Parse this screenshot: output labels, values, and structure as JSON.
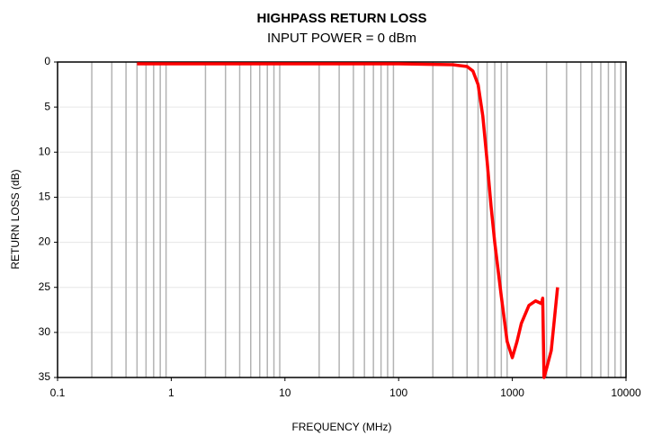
{
  "chart_data": {
    "type": "line",
    "title": "HIGHPASS RETURN LOSS",
    "subtitle": "INPUT POWER = 0 dBm",
    "x_label": "FREQUENCY (MHz)",
    "y_label": "RETURN LOSS (dB)",
    "x_log": true,
    "y_inverted": true,
    "grid": true,
    "x_minor_grid": true,
    "xlim": [
      0.1,
      10000
    ],
    "xticks": [
      0.1,
      1,
      10,
      100,
      1000,
      10000
    ],
    "ylim": [
      0,
      35
    ],
    "yticks": [
      0,
      5,
      10,
      15,
      20,
      25,
      30,
      35
    ],
    "series": [
      {
        "name": "Return Loss",
        "color": "#ff0000",
        "x": [
          0.5,
          10,
          100,
          300,
          400,
          450,
          500,
          550,
          600,
          650,
          700,
          800,
          900,
          1000,
          1100,
          1200,
          1400,
          1600,
          1800,
          1850,
          1900,
          2000,
          2200,
          2500
        ],
        "values": [
          0.2,
          0.2,
          0.2,
          0.3,
          0.5,
          1,
          2.5,
          6,
          11,
          16,
          20,
          26,
          31,
          32.8,
          31,
          29,
          27,
          26.5,
          26.8,
          26.2,
          35,
          34,
          32,
          25
        ]
      }
    ]
  }
}
